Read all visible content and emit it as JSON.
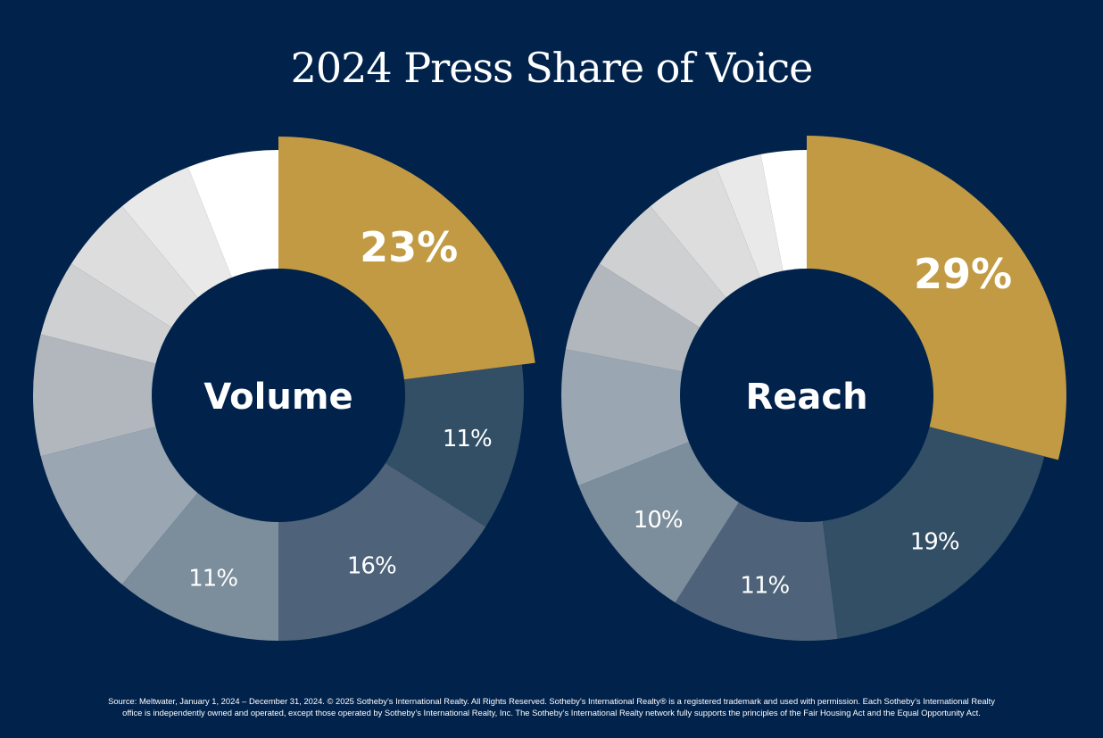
{
  "title": "2024 Press Share of Voice",
  "footer": {
    "line1": "Source: Meltwater, January 1, 2024 – December 31, 2024. © 2025 Sotheby’s International Realty. All Rights Reserved. Sotheby’s International Realty® is a registered trademark and used with permission. Each Sotheby’s International Realty",
    "line2": "office is independently owned and operated, except those operated by Sotheby’s International Realty, Inc. The Sotheby’s International Realty network fully supports the principles of the Fair Housing Act and the Equal Opportunity Act."
  },
  "colors": {
    "background": "#00224b",
    "highlight": "#c19a43",
    "center": "#00224b",
    "label": "#ffffff"
  },
  "chart_data": [
    {
      "type": "pie",
      "title": "Volume",
      "start_angle_deg": 0,
      "slices": [
        {
          "value": 23,
          "label": "23%",
          "color": "#c19a43",
          "highlight": true
        },
        {
          "value": 11,
          "label": "11%",
          "color": "#324f66"
        },
        {
          "value": 16,
          "label": "16%",
          "color": "#4e6379"
        },
        {
          "value": 11,
          "label": "11%",
          "color": "#7c8d9c"
        },
        {
          "value": 10,
          "label": "",
          "color": "#9aa7b3"
        },
        {
          "value": 8,
          "label": "",
          "color": "#b2b7bd"
        },
        {
          "value": 5,
          "label": "",
          "color": "#cfd0d1"
        },
        {
          "value": 5,
          "label": "",
          "color": "#dddddd"
        },
        {
          "value": 5,
          "label": "",
          "color": "#e9e9e9"
        },
        {
          "value": 6,
          "label": "",
          "color": "#ffffff"
        }
      ]
    },
    {
      "type": "pie",
      "title": "Reach",
      "start_angle_deg": 0,
      "slices": [
        {
          "value": 29,
          "label": "29%",
          "color": "#c19a43",
          "highlight": true
        },
        {
          "value": 19,
          "label": "19%",
          "color": "#324f66"
        },
        {
          "value": 11,
          "label": "11%",
          "color": "#4e6379"
        },
        {
          "value": 10,
          "label": "10%",
          "color": "#7c8d9c"
        },
        {
          "value": 9,
          "label": "",
          "color": "#9aa7b3"
        },
        {
          "value": 6,
          "label": "",
          "color": "#b2b7bd"
        },
        {
          "value": 5,
          "label": "",
          "color": "#cfd0d1"
        },
        {
          "value": 5,
          "label": "",
          "color": "#dddddd"
        },
        {
          "value": 3,
          "label": "",
          "color": "#e9e9e9"
        },
        {
          "value": 3,
          "label": "",
          "color": "#ffffff"
        }
      ]
    }
  ]
}
